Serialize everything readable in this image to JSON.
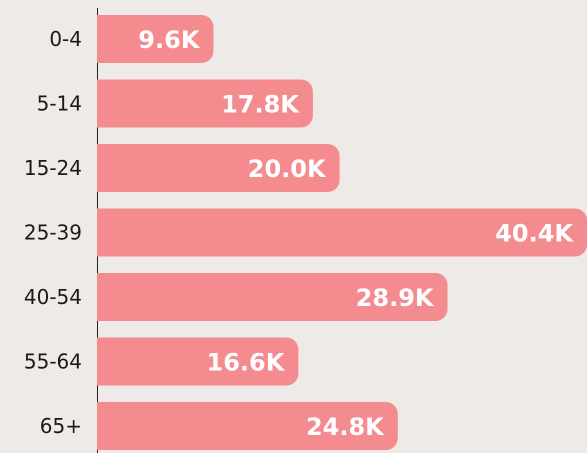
{
  "chart_data": {
    "type": "bar",
    "orientation": "horizontal",
    "categories": [
      "0-4",
      "5-14",
      "15-24",
      "25-39",
      "40-54",
      "55-64",
      "65+"
    ],
    "values": [
      9600,
      17800,
      20000,
      40400,
      28900,
      16600,
      24800
    ],
    "value_labels": [
      "9.6K",
      "17.8K",
      "20.0K",
      "40.4K",
      "28.9K",
      "16.6K",
      "24.8K"
    ],
    "color": "#f48b8f"
  }
}
